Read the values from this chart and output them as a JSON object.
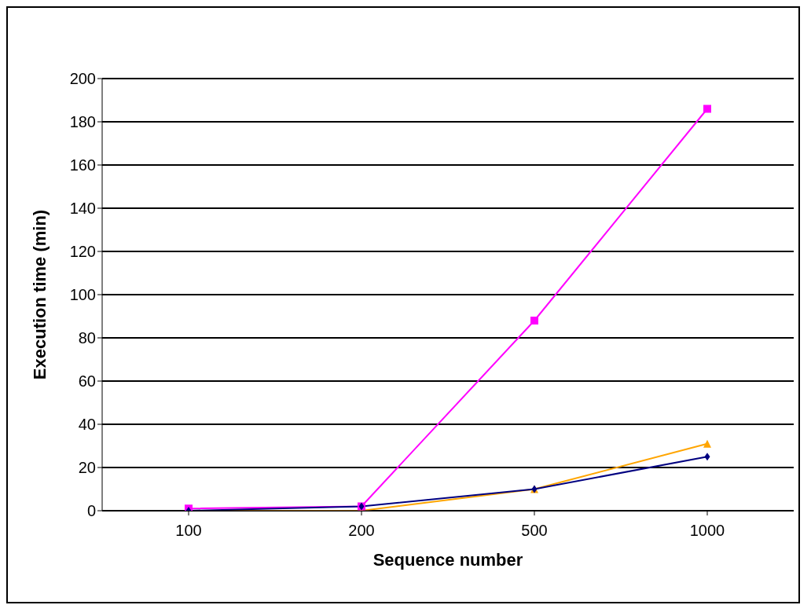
{
  "chart_data": {
    "type": "line",
    "xlabel": "Sequence number",
    "ylabel": "Execution time (min)",
    "categories": [
      "100",
      "200",
      "500",
      "1000"
    ],
    "ylim": [
      0,
      200
    ],
    "yticks": [
      0,
      20,
      40,
      60,
      80,
      100,
      120,
      140,
      160,
      180,
      200
    ],
    "grid": "y",
    "legend": false,
    "series": [
      {
        "color": "#000080",
        "values": [
          0,
          2,
          10,
          25
        ],
        "marker": "diamond"
      },
      {
        "color": "#ff00ff",
        "values": [
          1,
          2,
          88,
          186
        ],
        "marker": "square"
      },
      {
        "color": "#ffa500",
        "values": [
          0,
          0,
          10,
          31
        ],
        "marker": "triangle"
      }
    ]
  }
}
